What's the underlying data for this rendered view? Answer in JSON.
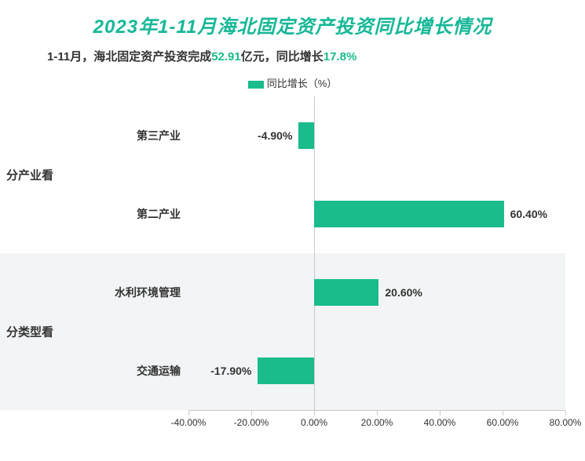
{
  "title": {
    "text": "2023年1-11月海北固定资产投资同比增长情况",
    "color": "#17b897",
    "fontsize": 24
  },
  "subtitle": {
    "prefix": "1-11月，海北固定资产投资完成",
    "value1": "52.91",
    "unit1": "亿元，同比增长",
    "value2": "17.8%",
    "text_color": "#333333",
    "highlight_color": "#1abc8c",
    "fontsize": 15
  },
  "legend": {
    "label": "同比增长（%）",
    "color": "#1abc8c",
    "text_color": "#333333"
  },
  "chart": {
    "type": "bar-horizontal",
    "xlim": [
      -40,
      80
    ],
    "xtick_step": 20,
    "xtick_labels": [
      "-40.00%",
      "-20.00%",
      "0.00%",
      "20.00%",
      "40.00%",
      "60.00%",
      "80.00%"
    ],
    "bar_color": "#1abc8c",
    "label_color": "#333333",
    "axis_color": "#c9c9c9",
    "group_bg_odd": "#ffffff",
    "group_bg_even": "#f2f4f5",
    "groups": [
      {
        "name": "分产业看",
        "rows": [
          {
            "category": "第三产业",
            "value": -4.9,
            "label": "-4.90%"
          },
          {
            "category": "第二产业",
            "value": 60.4,
            "label": "60.40%"
          }
        ]
      },
      {
        "name": "分类型看",
        "rows": [
          {
            "category": "水利环境管理",
            "value": 20.6,
            "label": "20.60%"
          },
          {
            "category": "交通运输",
            "value": -17.9,
            "label": "-17.90%"
          }
        ]
      }
    ]
  }
}
